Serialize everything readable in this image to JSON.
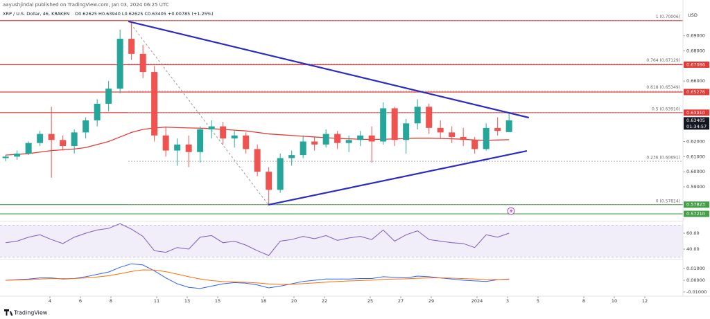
{
  "header": {
    "publisher": "aayushjindal published on TradingView.com, Jan 03, 2024 06:25 UTC"
  },
  "footer": {
    "brand": "TradingView"
  },
  "chart_data": {
    "type": "candlestick",
    "title": "XRP / U.S. Dollar, 46, KRAKEN",
    "ohlc_summary": "O0.62625 H0.63940 L0.62625 C0.63405 +0.00785 (+1.25%)",
    "currency": "USD",
    "up_color": "#26a69a",
    "down_color": "#ef5350",
    "x": [
      0.1,
      0.85,
      1.6,
      2.35,
      3.1,
      3.85,
      4.6,
      5.35,
      6.1,
      6.85,
      7.6,
      8.35,
      9.1,
      9.85,
      10.6,
      11.35,
      12.1,
      12.85,
      13.6,
      14.35,
      15.1,
      15.85,
      16.6,
      17.35,
      18.1,
      18.85,
      19.6,
      20.35,
      21.1,
      21.85,
      22.6,
      23.35,
      24.1,
      24.85,
      25.6,
      26.35,
      27.1,
      27.85,
      28.6,
      29.35,
      30.1,
      30.85,
      31.6,
      32.35,
      33.1
    ],
    "open": [
      0.609,
      0.61,
      0.612,
      0.619,
      0.625,
      0.621,
      0.617,
      0.626,
      0.634,
      0.645,
      0.655,
      0.688,
      0.678,
      0.666,
      0.624,
      0.614,
      0.618,
      0.613,
      0.628,
      0.63,
      0.622,
      0.624,
      0.615,
      0.6,
      0.588,
      0.609,
      0.611,
      0.62,
      0.618,
      0.625,
      0.619,
      0.621,
      0.624,
      0.62,
      0.642,
      0.621,
      0.632,
      0.643,
      0.629,
      0.626,
      0.623,
      0.621,
      0.615,
      0.629,
      0.62625
    ],
    "high": [
      0.611,
      0.614,
      0.62,
      0.627,
      0.643,
      0.624,
      0.628,
      0.636,
      0.648,
      0.66,
      0.694,
      0.6986,
      0.684,
      0.67,
      0.63,
      0.622,
      0.624,
      0.63,
      0.634,
      0.633,
      0.627,
      0.626,
      0.618,
      0.603,
      0.612,
      0.614,
      0.624,
      0.623,
      0.628,
      0.627,
      0.624,
      0.627,
      0.63,
      0.646,
      0.643,
      0.635,
      0.648,
      0.645,
      0.634,
      0.63,
      0.629,
      0.623,
      0.632,
      0.636,
      0.6394
    ],
    "low": [
      0.607,
      0.608,
      0.611,
      0.617,
      0.596,
      0.614,
      0.612,
      0.622,
      0.63,
      0.64,
      0.652,
      0.674,
      0.662,
      0.62,
      0.61,
      0.604,
      0.603,
      0.606,
      0.622,
      0.618,
      0.616,
      0.612,
      0.597,
      0.5783,
      0.586,
      0.604,
      0.609,
      0.614,
      0.616,
      0.615,
      0.613,
      0.617,
      0.606,
      0.618,
      0.617,
      0.612,
      0.628,
      0.625,
      0.622,
      0.619,
      0.617,
      0.612,
      0.614,
      0.624,
      0.62625
    ],
    "close": [
      0.61,
      0.612,
      0.619,
      0.625,
      0.621,
      0.617,
      0.626,
      0.634,
      0.645,
      0.655,
      0.688,
      0.678,
      0.666,
      0.624,
      0.614,
      0.618,
      0.613,
      0.628,
      0.63,
      0.622,
      0.624,
      0.615,
      0.6,
      0.588,
      0.609,
      0.611,
      0.62,
      0.618,
      0.625,
      0.619,
      0.621,
      0.624,
      0.62,
      0.642,
      0.621,
      0.632,
      0.643,
      0.629,
      0.626,
      0.623,
      0.621,
      0.615,
      0.629,
      0.627,
      0.63405
    ],
    "ma": {
      "color": "#e53935",
      "values": [
        0.611,
        0.6115,
        0.612,
        0.613,
        0.614,
        0.6145,
        0.615,
        0.616,
        0.618,
        0.62,
        0.623,
        0.626,
        0.628,
        0.629,
        0.6295,
        0.6292,
        0.629,
        0.6288,
        0.6285,
        0.628,
        0.6275,
        0.627,
        0.626,
        0.625,
        0.6245,
        0.624,
        0.6235,
        0.623,
        0.6225,
        0.622,
        0.6218,
        0.6215,
        0.6213,
        0.6215,
        0.6217,
        0.622,
        0.6222,
        0.6222,
        0.622,
        0.6218,
        0.6215,
        0.621,
        0.6208,
        0.621,
        0.6212
      ]
    },
    "xlim": [
      -0.27,
      44.5
    ],
    "xticks": [
      {
        "value": 3,
        "label": "4"
      },
      {
        "value": 5,
        "label": "6"
      },
      {
        "value": 7,
        "label": "8"
      },
      {
        "value": 10,
        "label": "11"
      },
      {
        "value": 12,
        "label": "13"
      },
      {
        "value": 14,
        "label": "15"
      },
      {
        "value": 17,
        "label": "18"
      },
      {
        "value": 19,
        "label": "20"
      },
      {
        "value": 21,
        "label": "22"
      },
      {
        "value": 24,
        "label": "25"
      },
      {
        "value": 26,
        "label": "27"
      },
      {
        "value": 28,
        "label": "29"
      },
      {
        "value": 31,
        "label": "2024"
      },
      {
        "value": 33,
        "label": "3"
      },
      {
        "value": 35,
        "label": "5"
      },
      {
        "value": 38,
        "label": "8"
      },
      {
        "value": 40,
        "label": "10"
      },
      {
        "value": 42,
        "label": "12"
      }
    ],
    "ylim": [
      0.568,
      0.7036
    ],
    "yticks": [
      {
        "value": 0.59,
        "label": "0.59000"
      },
      {
        "value": 0.6,
        "label": "0.60000"
      },
      {
        "value": 0.61,
        "label": "0.61000"
      },
      {
        "value": 0.62,
        "label": "0.62000"
      },
      {
        "value": 0.66,
        "label": "0.66000"
      },
      {
        "value": 0.68,
        "label": "0.68000"
      },
      {
        "value": 0.69,
        "label": "0.69000"
      }
    ],
    "levels": [
      {
        "value": 0.70006,
        "color": "#e53935"
      },
      {
        "value": 0.67086,
        "color": "#e53935"
      },
      {
        "value": 0.65276,
        "color": "#e53935"
      },
      {
        "value": 0.6391,
        "color": "#e53935"
      },
      {
        "value": 0.57823,
        "color": "#43a047"
      },
      {
        "value": 0.5721,
        "color": "#43a047"
      }
    ],
    "fib": {
      "anchors": {
        "x": [
          8.14,
          17.32
        ],
        "y": [
          0.70006,
          0.57814
        ]
      },
      "levels": [
        {
          "value": 0.70006,
          "label": "1 (0.70006)"
        },
        {
          "value": 0.67129,
          "label": "0.764 (0.67129)"
        },
        {
          "value": 0.65349,
          "label": "0.618 (0.65349)"
        },
        {
          "value": 0.6391,
          "label": "0.5 (0.63910)"
        },
        {
          "value": 0.60691,
          "label": "0.236 (0.60691)"
        },
        {
          "value": 0.57814,
          "label": "0 (0.57814)"
        }
      ]
    },
    "price_tags": [
      {
        "value": 0.67086,
        "label": "0.67086",
        "color": "#e53935"
      },
      {
        "value": 0.65276,
        "label": "0.65276",
        "color": "#e53935"
      },
      {
        "value": 0.6391,
        "label": "0.63910",
        "color": "#e53935"
      },
      {
        "value": 0.63405,
        "label": "0.63405",
        "color": "#131722",
        "countdown": "01:34:57"
      },
      {
        "value": 0.57823,
        "label": "0.57823",
        "color": "#43a047"
      },
      {
        "value": 0.5721,
        "label": "0.57210",
        "color": "#43a047"
      }
    ],
    "trendlines": [
      {
        "color": "#2b2bc4",
        "x": [
          8.14,
          34.4
        ],
        "y": [
          0.6995,
          0.6358
        ]
      },
      {
        "color": "#2b2bc4",
        "x": [
          17.32,
          34.27
        ],
        "y": [
          0.5781,
          0.6138
        ]
      }
    ],
    "rsi": {
      "ylim": [
        29.6,
        73
      ],
      "yticks": [
        {
          "value": 60,
          "label": "60.00"
        },
        {
          "value": 40,
          "label": "40.00"
        }
      ],
      "band": [
        30,
        70
      ],
      "color": "#7e57c2",
      "values": [
        48,
        50,
        55,
        58,
        52,
        47,
        55,
        60,
        64,
        66,
        72,
        65,
        56,
        38,
        36,
        42,
        40,
        55,
        57,
        48,
        50,
        45,
        38,
        32,
        50,
        52,
        56,
        53,
        57,
        51,
        54,
        56,
        52,
        64,
        50,
        58,
        63,
        52,
        50,
        48,
        47,
        42,
        58,
        55,
        60
      ]
    },
    "macd": {
      "ylim": [
        -0.01353,
        0.01588
      ],
      "yticks": [
        {
          "value": 0.01,
          "label": "0.01000"
        },
        {
          "value": 0,
          "label": "0.00000"
        },
        {
          "value": -0.01,
          "label": "-0.01000"
        }
      ],
      "series": [
        {
          "color": "#2962ff",
          "values": [
            0,
            0.0005,
            0.001,
            0.002,
            0.002,
            0.001,
            0.0015,
            0.003,
            0.005,
            0.007,
            0.011,
            0.014,
            0.013,
            0.008,
            0.002,
            -0.003,
            -0.006,
            -0.007,
            -0.005,
            -0.003,
            -0.002,
            -0.0025,
            -0.004,
            -0.0065,
            -0.005,
            -0.003,
            -0.001,
            0,
            0.001,
            0.001,
            0.001,
            0.0015,
            0.0015,
            0.003,
            0.0025,
            0.002,
            0.0035,
            0.003,
            0.002,
            0.001,
            0,
            -0.0005,
            -0.001,
            0.0005,
            0.001
          ]
        },
        {
          "color": "#ff6d00",
          "values": [
            0,
            0.0002,
            0.0005,
            0.001,
            0.0014,
            0.0014,
            0.0015,
            0.002,
            0.0028,
            0.0038,
            0.0056,
            0.0075,
            0.0088,
            0.0087,
            0.0073,
            0.0052,
            0.003,
            0.001,
            -0.0003,
            -0.0011,
            -0.0015,
            -0.0018,
            -0.0023,
            -0.0031,
            -0.0035,
            -0.0034,
            -0.0029,
            -0.0023,
            -0.0016,
            -0.001,
            -0.0006,
            -0.0002,
            0.0001,
            0.0007,
            0.001,
            0.0012,
            0.0017,
            0.002,
            0.002,
            0.0018,
            0.0014,
            0.001,
            0.0006,
            0.0006,
            0.0007
          ]
        }
      ]
    }
  }
}
